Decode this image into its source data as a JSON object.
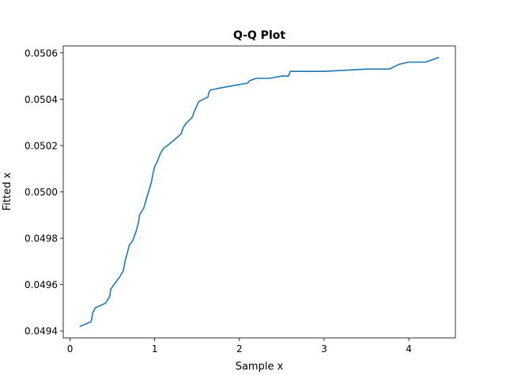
{
  "chart_data": {
    "type": "line",
    "title": "Q-Q Plot",
    "xlabel": "Sample x",
    "ylabel": "Fitted x",
    "xlim": [
      -0.08,
      4.55
    ],
    "ylim": [
      0.04937,
      0.05063
    ],
    "xticks": [
      0,
      1,
      2,
      3,
      4
    ],
    "xtick_labels": [
      "0",
      "1",
      "2",
      "3",
      "4"
    ],
    "yticks": [
      0.0494,
      0.0496,
      0.0498,
      0.05,
      0.0502,
      0.0504,
      0.0506
    ],
    "ytick_labels": [
      "0.0494",
      "0.0496",
      "0.0498",
      "0.0500",
      "0.0502",
      "0.0504",
      "0.0506"
    ],
    "grid": false,
    "color": "#1f77b4",
    "series": [
      {
        "x": [
          0.12,
          0.25,
          0.27,
          0.3,
          0.42,
          0.47,
          0.48,
          0.52,
          0.58,
          0.63,
          0.65,
          0.7,
          0.74,
          0.78,
          0.81,
          0.82,
          0.87,
          0.91,
          0.96,
          0.98,
          1.0,
          1.03,
          1.06,
          1.09,
          1.11,
          1.15,
          1.25,
          1.31,
          1.34,
          1.38,
          1.44,
          1.47,
          1.52,
          1.63,
          1.64,
          1.66,
          1.8,
          1.95,
          2.1,
          2.12,
          2.2,
          2.35,
          2.5,
          2.58,
          2.6,
          3.0,
          3.5,
          3.77,
          3.88,
          4.0,
          4.2,
          4.35
        ],
        "y": [
          0.04942,
          0.04944,
          0.04948,
          0.0495,
          0.04952,
          0.04955,
          0.04958,
          0.0496,
          0.04963,
          0.04966,
          0.0497,
          0.04977,
          0.04979,
          0.04983,
          0.04987,
          0.0499,
          0.04993,
          0.04998,
          0.05004,
          0.05008,
          0.05011,
          0.05013,
          0.05016,
          0.05018,
          0.05019,
          0.0502,
          0.05023,
          0.05025,
          0.05028,
          0.0503,
          0.05032,
          0.05035,
          0.05039,
          0.05041,
          0.05043,
          0.05044,
          0.05045,
          0.05046,
          0.05047,
          0.05048,
          0.05049,
          0.05049,
          0.0505,
          0.0505,
          0.05052,
          0.05052,
          0.05053,
          0.05053,
          0.05055,
          0.05056,
          0.05056,
          0.05058
        ]
      }
    ]
  }
}
